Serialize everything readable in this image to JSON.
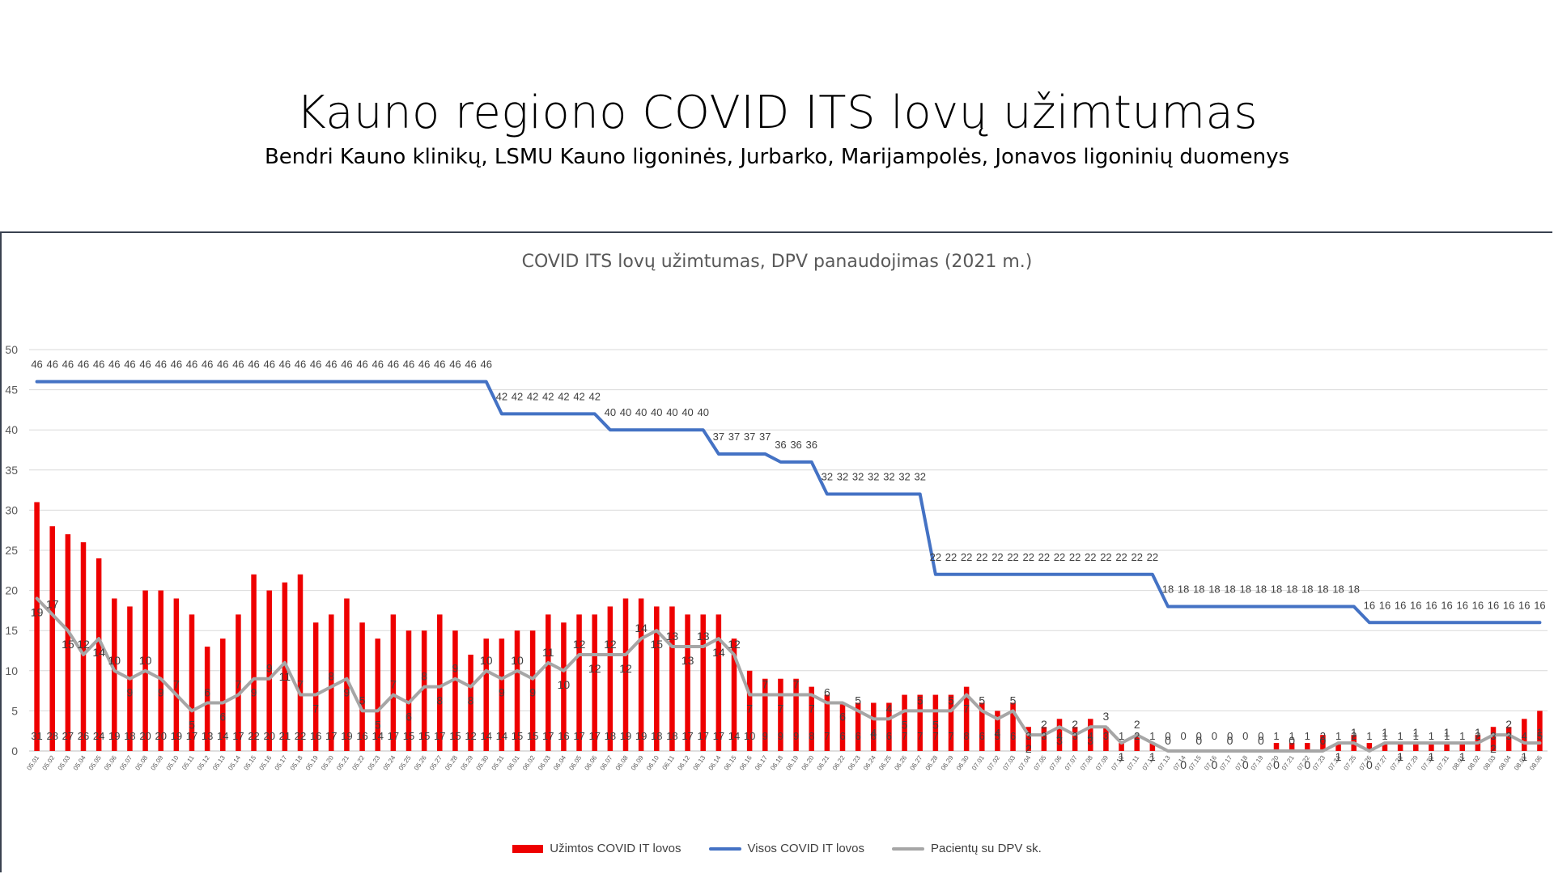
{
  "slide": {
    "title": "Kauno regiono COVID ITS lovų užimtumas",
    "subtitle": "Bendri Kauno klinikų, LSMU Kauno ligoninės, Jurbarko, Marijampolės, Jonavos ligoninių duomenys"
  },
  "chart_data": {
    "type": "bar",
    "title": "COVID ITS lovų užimtumas, DPV panaudojimas (2021 m.)",
    "xlabel": "",
    "ylabel": "",
    "ylim": [
      0,
      50
    ],
    "yticks": [
      "0",
      "5",
      "10",
      "15",
      "20",
      "25",
      "30",
      "35",
      "40",
      "45",
      "50"
    ],
    "grid": true,
    "legend_position": "bottom",
    "categories": [
      "05.01",
      "05.02",
      "05.03",
      "05.04",
      "05.05",
      "05.06",
      "05.07",
      "05.08",
      "05.09",
      "05.10",
      "05.11",
      "05.12",
      "05.13",
      "05.14",
      "05.15",
      "05.16",
      "05.17",
      "05.18",
      "05.19",
      "05.20",
      "05.21",
      "05.22",
      "05.23",
      "05.24",
      "05.25",
      "05.26",
      "05.27",
      "05.28",
      "05.29",
      "05.30",
      "05.31",
      "06.01",
      "06.02",
      "06.03",
      "06.04",
      "06.05",
      "06.06",
      "06.07",
      "06.08",
      "06.09",
      "06.10",
      "06.11",
      "06.12",
      "06.13",
      "06.14",
      "06.15",
      "06.16",
      "06.17",
      "06.18",
      "06.19",
      "06.20",
      "06.21",
      "06.22",
      "06.23",
      "06.24",
      "06.25",
      "06.26",
      "06.27",
      "06.28",
      "06.29",
      "06.30",
      "07.01",
      "07.02",
      "07.03",
      "07.04",
      "07.05",
      "07.06",
      "07.07",
      "07.08",
      "07.09",
      "07.10",
      "07.11",
      "07.12",
      "07.13",
      "07.14",
      "07.15",
      "07.16",
      "07.17",
      "07.18",
      "07.19",
      "07.20",
      "07.21",
      "07.22",
      "07.23",
      "07.24",
      "07.25",
      "07.26",
      "07.27",
      "07.28",
      "07.29",
      "07.30",
      "07.31",
      "08.01",
      "08.02",
      "08.03",
      "08.04",
      "08.05",
      "08.06"
    ],
    "series": [
      {
        "name": "Užimtos COVID IT lovos",
        "kind": "bar",
        "color": "#ee0000",
        "values": [
          31,
          28,
          27,
          26,
          24,
          19,
          18,
          20,
          20,
          19,
          17,
          13,
          14,
          17,
          22,
          20,
          21,
          22,
          16,
          17,
          19,
          16,
          14,
          17,
          15,
          15,
          17,
          15,
          12,
          14,
          14,
          15,
          15,
          17,
          16,
          17,
          17,
          18,
          19,
          19,
          18,
          18,
          17,
          17,
          17,
          14,
          10,
          9,
          9,
          9,
          8,
          7,
          6,
          6,
          6,
          6,
          7,
          7,
          7,
          7,
          8,
          6,
          5,
          6,
          3,
          3,
          4,
          3,
          4,
          3,
          1,
          2,
          1,
          0,
          0,
          0,
          0,
          0,
          0,
          0,
          1,
          1,
          1,
          2,
          1,
          2,
          1,
          1,
          1,
          1,
          1,
          1,
          1,
          2,
          3,
          3,
          4,
          5
        ]
      },
      {
        "name": "Visos COVID IT lovos",
        "kind": "line",
        "color": "#4472c4",
        "values": [
          46,
          46,
          46,
          46,
          46,
          46,
          46,
          46,
          46,
          46,
          46,
          46,
          46,
          46,
          46,
          46,
          46,
          46,
          46,
          46,
          46,
          46,
          46,
          46,
          46,
          46,
          46,
          46,
          46,
          46,
          42,
          42,
          42,
          42,
          42,
          42,
          42,
          40,
          40,
          40,
          40,
          40,
          40,
          40,
          37,
          37,
          37,
          37,
          36,
          36,
          36,
          32,
          32,
          32,
          32,
          32,
          32,
          32,
          22,
          22,
          22,
          22,
          22,
          22,
          22,
          22,
          22,
          22,
          22,
          22,
          22,
          22,
          22,
          18,
          18,
          18,
          18,
          18,
          18,
          18,
          18,
          18,
          18,
          18,
          18,
          18,
          16,
          16,
          16,
          16,
          16,
          16,
          16,
          16,
          16,
          16,
          16,
          16
        ]
      },
      {
        "name": "Pacientų su DPV sk.",
        "kind": "line",
        "color": "#a6a6a6",
        "values": [
          19,
          17,
          15,
          12,
          14,
          10,
          9,
          10,
          9,
          7,
          5,
          6,
          6,
          7,
          9,
          9,
          11,
          7,
          7,
          8,
          9,
          5,
          5,
          7,
          6,
          8,
          8,
          9,
          8,
          10,
          9,
          10,
          9,
          11,
          10,
          12,
          12,
          12,
          12,
          14,
          15,
          13,
          13,
          13,
          14,
          12,
          7,
          7,
          7,
          7,
          7,
          6,
          6,
          5,
          4,
          4,
          5,
          5,
          5,
          5,
          7,
          5,
          4,
          5,
          2,
          2,
          3,
          2,
          3,
          3,
          1,
          2,
          1,
          0,
          0,
          0,
          0,
          0,
          0,
          0,
          0,
          0,
          0,
          0,
          1,
          1,
          0,
          1,
          1,
          1,
          1,
          1,
          1,
          1,
          2,
          2,
          1,
          1
        ]
      }
    ]
  }
}
